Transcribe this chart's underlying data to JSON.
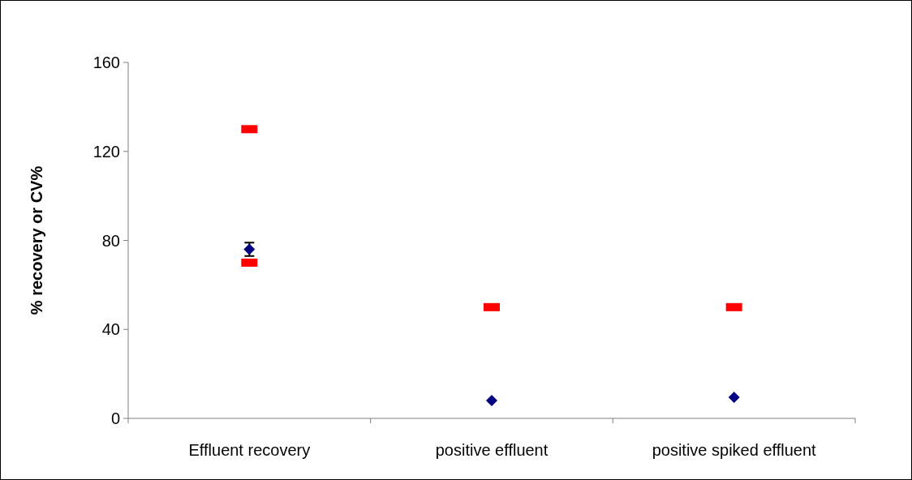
{
  "chart_data": {
    "type": "scatter",
    "ylabel": "% recovery or CV%",
    "categories": [
      "Effluent recovery",
      "positive effluent",
      "positive spiked effluent"
    ],
    "series": [
      {
        "color": "#000080",
        "marker": "diamond",
        "values": [
          76,
          8,
          9.5
        ],
        "errors": [
          3,
          null,
          null
        ]
      },
      {
        "color": "#ff0000",
        "marker": "square",
        "values": [
          130,
          null,
          null
        ]
      },
      {
        "color": "#ff0000",
        "marker": "square",
        "values": [
          70,
          50,
          50
        ]
      }
    ],
    "ylim": [
      0,
      160
    ],
    "yticks": [
      0,
      40,
      80,
      120,
      160
    ],
    "grid": false
  }
}
